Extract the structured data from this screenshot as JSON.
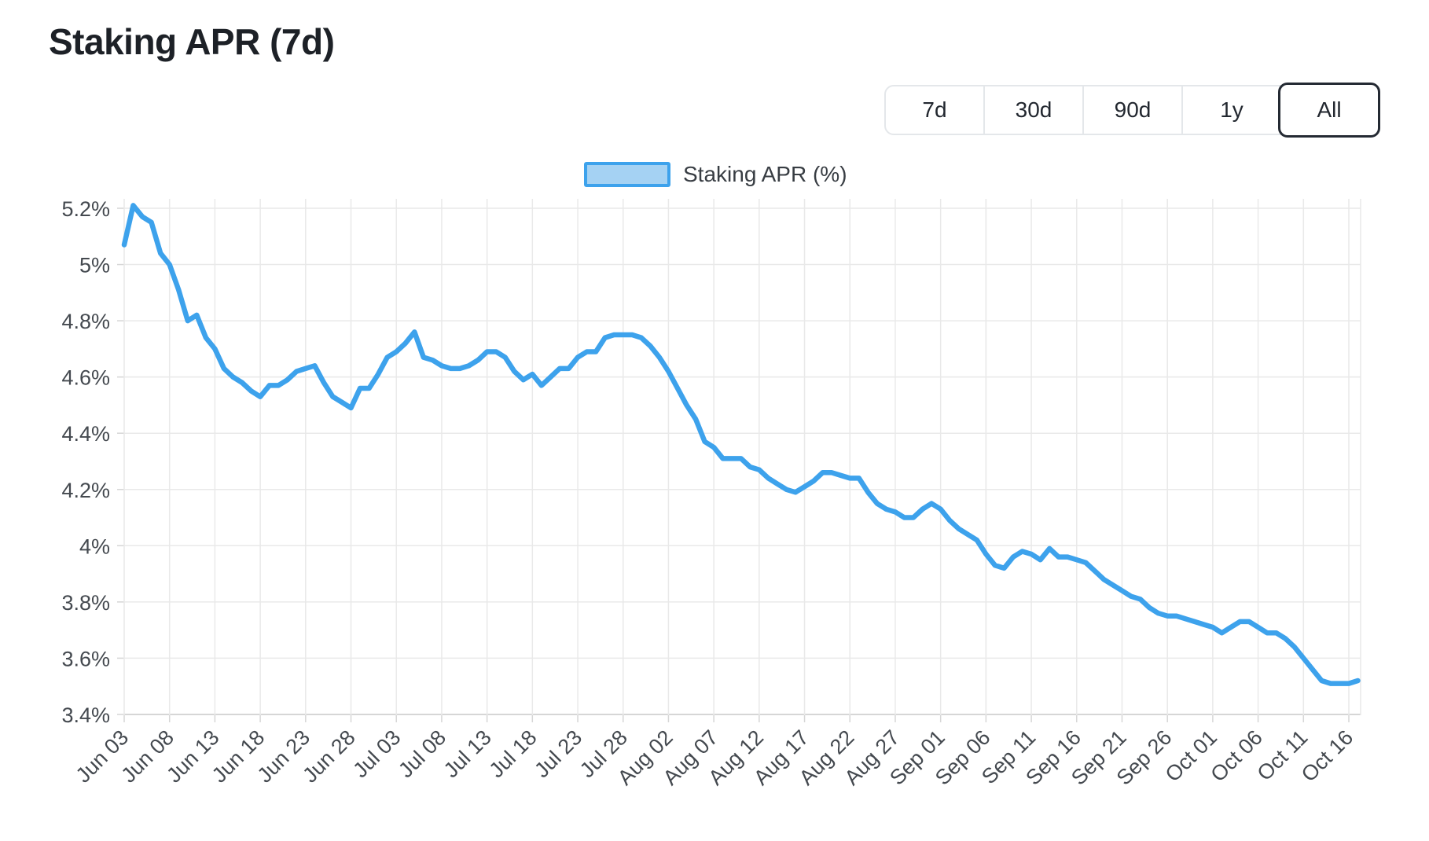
{
  "page": {
    "title": "Staking APR (7d)"
  },
  "range_selector": {
    "options": [
      "7d",
      "30d",
      "90d",
      "1y",
      "All"
    ],
    "active": "All"
  },
  "legend": {
    "label": "Staking APR (%)"
  },
  "chart_data": {
    "type": "line",
    "title": "Staking APR (7d)",
    "legend_position": "top",
    "grid": true,
    "ylim": [
      3.4,
      5.2335
    ],
    "ytick_step": 0.2,
    "y_tick_labels": [
      "5.2%",
      "5%",
      "4.8%",
      "4.6%",
      "4.4%",
      "4.2%",
      "4%",
      "3.8%",
      "3.6%",
      "3.4%"
    ],
    "x_tick_labels": [
      "Jun 03",
      "Jun 08",
      "Jun 13",
      "Jun 18",
      "Jun 23",
      "Jun 28",
      "Jul 03",
      "Jul 08",
      "Jul 13",
      "Jul 18",
      "Jul 23",
      "Jul 28",
      "Aug 02",
      "Aug 07",
      "Aug 12",
      "Aug 17",
      "Aug 22",
      "Aug 27",
      "Sep 01",
      "Sep 06",
      "Sep 11",
      "Sep 16",
      "Sep 21",
      "Sep 26",
      "Oct 01",
      "Oct 06",
      "Oct 11",
      "Oct 16"
    ],
    "label_every": 5,
    "series": [
      {
        "name": "Staking APR (%)",
        "x": [
          "Jun 03",
          "Jun 04",
          "Jun 05",
          "Jun 06",
          "Jun 07",
          "Jun 08",
          "Jun 09",
          "Jun 10",
          "Jun 11",
          "Jun 12",
          "Jun 13",
          "Jun 14",
          "Jun 15",
          "Jun 16",
          "Jun 17",
          "Jun 18",
          "Jun 19",
          "Jun 20",
          "Jun 21",
          "Jun 22",
          "Jun 23",
          "Jun 24",
          "Jun 25",
          "Jun 26",
          "Jun 27",
          "Jun 28",
          "Jun 29",
          "Jun 30",
          "Jul 01",
          "Jul 02",
          "Jul 03",
          "Jul 04",
          "Jul 05",
          "Jul 06",
          "Jul 07",
          "Jul 08",
          "Jul 09",
          "Jul 10",
          "Jul 11",
          "Jul 12",
          "Jul 13",
          "Jul 14",
          "Jul 15",
          "Jul 16",
          "Jul 17",
          "Jul 18",
          "Jul 19",
          "Jul 20",
          "Jul 21",
          "Jul 22",
          "Jul 23",
          "Jul 24",
          "Jul 25",
          "Jul 26",
          "Jul 27",
          "Jul 28",
          "Jul 29",
          "Jul 30",
          "Jul 31",
          "Aug 01",
          "Aug 02",
          "Aug 03",
          "Aug 04",
          "Aug 05",
          "Aug 06",
          "Aug 07",
          "Aug 08",
          "Aug 09",
          "Aug 10",
          "Aug 11",
          "Aug 12",
          "Aug 13",
          "Aug 14",
          "Aug 15",
          "Aug 16",
          "Aug 17",
          "Aug 18",
          "Aug 19",
          "Aug 20",
          "Aug 21",
          "Aug 22",
          "Aug 23",
          "Aug 24",
          "Aug 25",
          "Aug 26",
          "Aug 27",
          "Aug 28",
          "Aug 29",
          "Aug 30",
          "Aug 31",
          "Sep 01",
          "Sep 02",
          "Sep 03",
          "Sep 04",
          "Sep 05",
          "Sep 06",
          "Sep 07",
          "Sep 08",
          "Sep 09",
          "Sep 10",
          "Sep 11",
          "Sep 12",
          "Sep 13",
          "Sep 14",
          "Sep 15",
          "Sep 16",
          "Sep 17",
          "Sep 18",
          "Sep 19",
          "Sep 20",
          "Sep 21",
          "Sep 22",
          "Sep 23",
          "Sep 24",
          "Sep 25",
          "Sep 26",
          "Sep 27",
          "Sep 28",
          "Sep 29",
          "Sep 30",
          "Oct 01",
          "Oct 02",
          "Oct 03",
          "Oct 04",
          "Oct 05",
          "Oct 06",
          "Oct 07",
          "Oct 08",
          "Oct 09",
          "Oct 10",
          "Oct 11",
          "Oct 12",
          "Oct 13",
          "Oct 14",
          "Oct 15",
          "Oct 16",
          "Oct 17"
        ],
        "values": [
          5.07,
          5.21,
          5.17,
          5.15,
          5.04,
          5.0,
          4.91,
          4.8,
          4.82,
          4.74,
          4.7,
          4.63,
          4.6,
          4.58,
          4.55,
          4.53,
          4.57,
          4.57,
          4.59,
          4.62,
          4.63,
          4.64,
          4.58,
          4.53,
          4.51,
          4.49,
          4.56,
          4.56,
          4.61,
          4.67,
          4.69,
          4.72,
          4.76,
          4.67,
          4.66,
          4.64,
          4.63,
          4.63,
          4.64,
          4.66,
          4.69,
          4.69,
          4.67,
          4.62,
          4.59,
          4.61,
          4.57,
          4.6,
          4.63,
          4.63,
          4.67,
          4.69,
          4.69,
          4.74,
          4.75,
          4.75,
          4.75,
          4.74,
          4.71,
          4.67,
          4.62,
          4.56,
          4.5,
          4.45,
          4.37,
          4.35,
          4.31,
          4.31,
          4.31,
          4.28,
          4.27,
          4.24,
          4.22,
          4.2,
          4.19,
          4.21,
          4.23,
          4.26,
          4.26,
          4.25,
          4.24,
          4.24,
          4.19,
          4.15,
          4.13,
          4.12,
          4.1,
          4.1,
          4.13,
          4.15,
          4.13,
          4.09,
          4.06,
          4.04,
          4.02,
          3.97,
          3.93,
          3.92,
          3.96,
          3.98,
          3.97,
          3.95,
          3.99,
          3.96,
          3.96,
          3.95,
          3.94,
          3.91,
          3.88,
          3.86,
          3.84,
          3.82,
          3.81,
          3.78,
          3.76,
          3.75,
          3.75,
          3.74,
          3.73,
          3.72,
          3.71,
          3.69,
          3.71,
          3.73,
          3.73,
          3.71,
          3.69,
          3.69,
          3.67,
          3.64,
          3.6,
          3.56,
          3.52,
          3.51,
          3.51,
          3.51,
          3.52
        ]
      }
    ],
    "colors": {
      "line": "#3da2ec",
      "legend_fill": "#a5d2f3",
      "grid": "#e9e9e9",
      "axis_border": "#d6d6d6",
      "tick_text": "#44494f",
      "title_text": "#1d2127"
    }
  }
}
